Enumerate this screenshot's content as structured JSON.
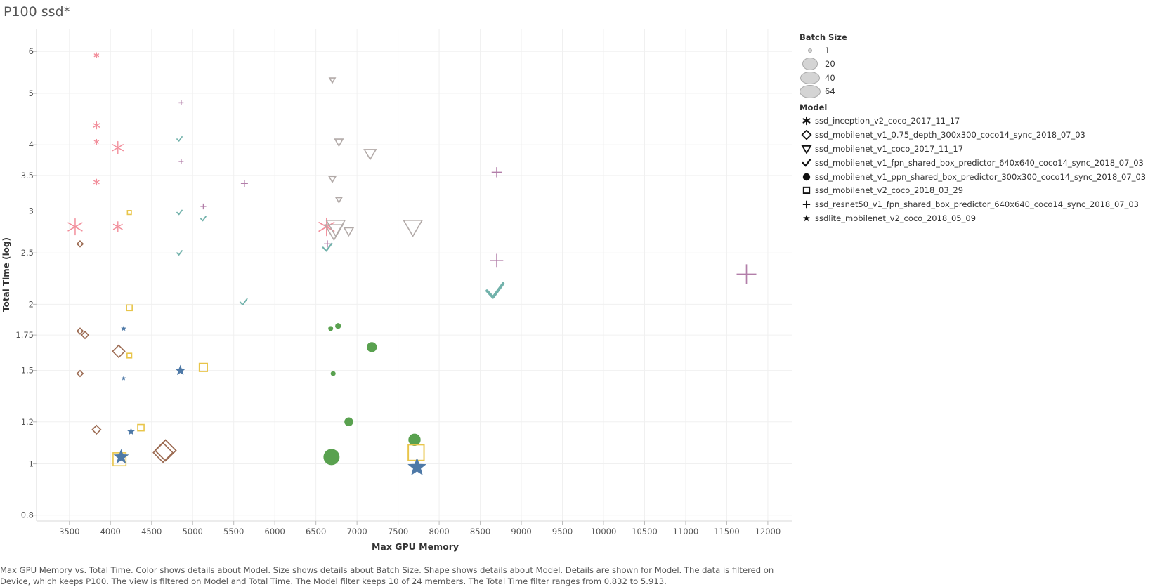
{
  "title": "P100 ssd*",
  "caption": "Max GPU Memory vs. Total Time.  Color shows details about Model.  Size shows details about Batch Size.  Shape shows details about Model.  Details are shown for Model. The data is filtered on Device, which keeps P100. The view is filtered on Model and Total Time. The Model filter keeps 10 of 24 members. The Total Time filter ranges from 0.832 to 5.913.",
  "legend": {
    "size_title": "Batch Size",
    "sizes": [
      {
        "label": "1",
        "value": 1
      },
      {
        "label": "20",
        "value": 20
      },
      {
        "label": "40",
        "value": 40
      },
      {
        "label": "64",
        "value": 64
      }
    ],
    "model_title": "Model"
  },
  "chart_data": {
    "type": "scatter",
    "xlabel": "Max GPU Memory",
    "ylabel": "Total Time (log)",
    "xlim": [
      3100,
      12300
    ],
    "ylim": [
      0.78,
      6.6
    ],
    "y_scale": "log",
    "x_ticks": [
      3500,
      4000,
      4500,
      5000,
      5500,
      6000,
      6500,
      7000,
      7500,
      8000,
      8500,
      9000,
      9500,
      10000,
      10500,
      11000,
      11500,
      12000
    ],
    "x_tick_labels": [
      "3500",
      "4000",
      "4500",
      "5000",
      "5500",
      "6000",
      "6500",
      "7000",
      "7500",
      "8000",
      "8500",
      "9000",
      "9500",
      "10000",
      "10500",
      "11000",
      "11500",
      "12000"
    ],
    "y_ticks": [
      0.8,
      1,
      1.2,
      1.5,
      1.75,
      2,
      2.5,
      3,
      3.5,
      4,
      5,
      6
    ],
    "y_tick_labels": [
      "0.8",
      "1",
      "1.2",
      "1.5",
      "1.75",
      "2",
      "2.5",
      "3",
      "3.5",
      "4",
      "5",
      "6"
    ],
    "grid": true,
    "legend_position": "right",
    "series": [
      {
        "name": "ssd_inception_v2_coco_2017_11_17",
        "shape": "asterisk",
        "color": "#f28e9b",
        "points": [
          [
            3830,
            5.9,
            1
          ],
          [
            3830,
            4.35,
            4
          ],
          [
            3830,
            4.05,
            1
          ],
          [
            3830,
            3.4,
            2
          ],
          [
            3570,
            2.8,
            40
          ],
          [
            4090,
            3.95,
            20
          ],
          [
            4090,
            2.8,
            12
          ],
          [
            6630,
            2.8,
            48
          ]
        ]
      },
      {
        "name": "ssd_mobilenet_v1_0.75_depth_300x300_coco14_sync_2018_07_03",
        "shape": "diamond",
        "color": "#9c6b52",
        "points": [
          [
            3630,
            2.6,
            1
          ],
          [
            3630,
            1.78,
            1
          ],
          [
            3690,
            1.75,
            2
          ],
          [
            3630,
            1.48,
            1
          ],
          [
            3830,
            1.16,
            4
          ],
          [
            4100,
            1.63,
            12
          ],
          [
            4640,
            1.05,
            40
          ],
          [
            4670,
            1.06,
            48
          ]
        ]
      },
      {
        "name": "ssd_mobilenet_v1_coco_2017_11_17",
        "shape": "triangle-down",
        "color": "#b2aaa8",
        "points": [
          [
            6700,
            5.3,
            1
          ],
          [
            6780,
            4.05,
            4
          ],
          [
            7160,
            3.85,
            12
          ],
          [
            6700,
            3.45,
            2
          ],
          [
            6780,
            3.15,
            1
          ],
          [
            6900,
            2.75,
            6
          ],
          [
            6740,
            2.8,
            40
          ],
          [
            6720,
            2.75,
            36
          ],
          [
            7680,
            2.8,
            40
          ]
        ]
      },
      {
        "name": "ssd_mobilenet_v1_fpn_shared_box_predictor_640x640_coco14_sync_2018_07_03",
        "shape": "check",
        "color": "#72b2ab",
        "points": [
          [
            4840,
            4.1,
            1
          ],
          [
            4840,
            2.98,
            1
          ],
          [
            5130,
            2.9,
            1
          ],
          [
            4840,
            2.5,
            1
          ],
          [
            5620,
            2.02,
            4
          ],
          [
            6640,
            2.56,
            8
          ],
          [
            8680,
            2.12,
            40
          ]
        ]
      },
      {
        "name": "ssd_mobilenet_v1_ppn_shared_box_predictor_300x300_coco14_sync_2018_07_03",
        "shape": "circle",
        "color": "#59a14f",
        "points": [
          [
            6680,
            1.8,
            1
          ],
          [
            6770,
            1.82,
            2
          ],
          [
            6710,
            1.48,
            1
          ],
          [
            7180,
            1.66,
            12
          ],
          [
            6900,
            1.2,
            8
          ],
          [
            6690,
            1.03,
            40
          ],
          [
            7700,
            1.11,
            20
          ]
        ]
      },
      {
        "name": "ssd_mobilenet_v2_coco_2018_03_29",
        "shape": "square",
        "color": "#e8c54a",
        "points": [
          [
            4230,
            2.98,
            1
          ],
          [
            4230,
            1.97,
            4
          ],
          [
            4230,
            1.6,
            2
          ],
          [
            4370,
            1.17,
            6
          ],
          [
            5130,
            1.52,
            12
          ],
          [
            4110,
            1.02,
            40
          ],
          [
            7720,
            1.05,
            64
          ]
        ]
      },
      {
        "name": "ssd_resnet50_v1_fpn_shared_box_predictor_640x640_coco14_sync_2018_07_03",
        "shape": "plus",
        "color": "#b27ea9",
        "points": [
          [
            4860,
            4.8,
            1
          ],
          [
            4860,
            3.72,
            1
          ],
          [
            5130,
            3.06,
            2
          ],
          [
            5630,
            3.38,
            4
          ],
          [
            6640,
            2.6,
            4
          ],
          [
            8700,
            3.55,
            12
          ],
          [
            8700,
            2.42,
            24
          ],
          [
            11740,
            2.28,
            64
          ]
        ]
      },
      {
        "name": "ssdlite_mobilenet_v2_coco_2018_05_09",
        "shape": "star",
        "color": "#4e79a7",
        "points": [
          [
            4160,
            1.8,
            2
          ],
          [
            4160,
            1.45,
            1
          ],
          [
            4250,
            1.15,
            6
          ],
          [
            4130,
            1.03,
            40
          ],
          [
            4140,
            1.03,
            8
          ],
          [
            4850,
            1.5,
            16
          ],
          [
            7730,
            0.985,
            64
          ]
        ]
      }
    ]
  }
}
